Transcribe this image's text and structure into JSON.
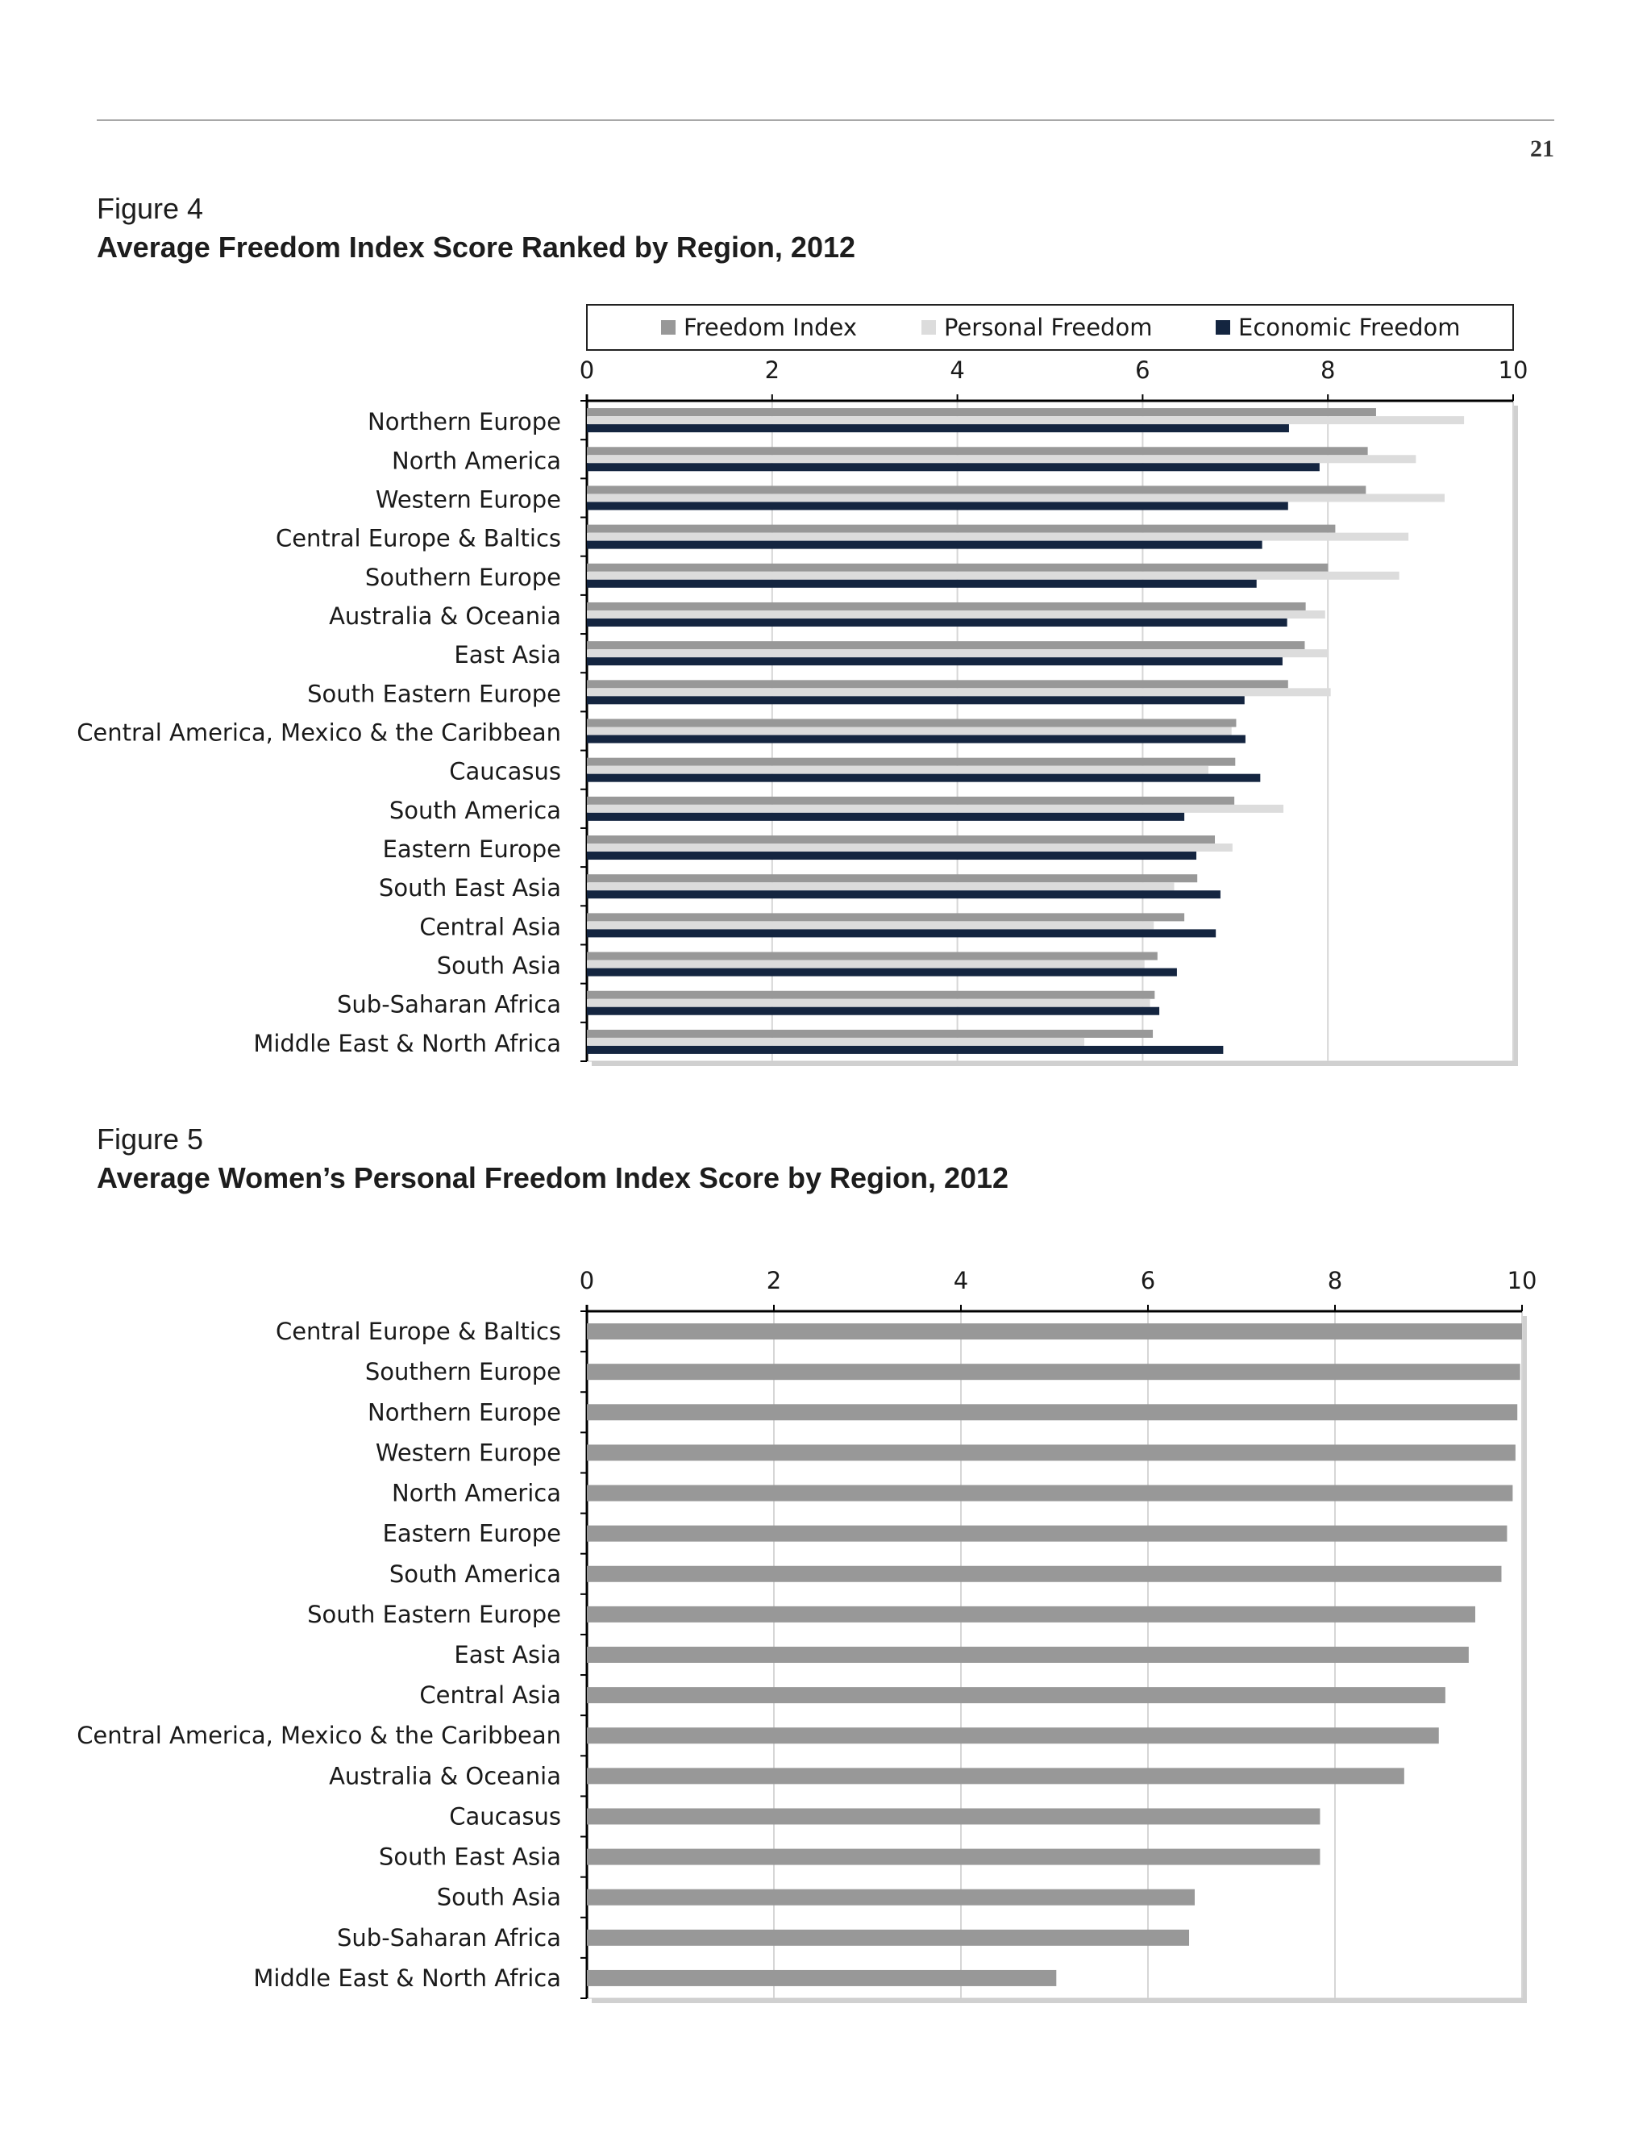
{
  "page": {
    "number": "21"
  },
  "figures": [
    {
      "label": "Figure 4",
      "title": "Average Freedom Index Score Ranked by Region, 2012"
    },
    {
      "label": "Figure 5",
      "title": "Average Women’s Personal Freedom Index Score by Region, 2012"
    }
  ],
  "colors": {
    "freedom_index": "#989898",
    "personal_freedom": "#dcdcdc",
    "economic_freedom": "#142540",
    "grid": "#d6d6d6",
    "axis": "#000000"
  },
  "chart_data": [
    {
      "type": "bar",
      "orientation": "horizontal",
      "title": "Average Freedom Index Score Ranked by Region, 2012",
      "categories": [
        "Northern Europe",
        "North America",
        "Western Europe",
        "Central Europe & Baltics",
        "Southern Europe",
        "Australia & Oceania",
        "East Asia",
        "South Eastern Europe",
        "Central America, Mexico & the Caribbean",
        "Caucasus",
        "South America",
        "Eastern Europe",
        "South East Asia",
        "Central Asia",
        "South Asia",
        "Sub-Saharan Africa",
        "Middle East & North Africa"
      ],
      "series": [
        {
          "name": "Freedom Index",
          "values": [
            8.52,
            8.43,
            8.41,
            8.08,
            8.0,
            7.76,
            7.75,
            7.57,
            7.01,
            7.0,
            6.99,
            6.78,
            6.59,
            6.45,
            6.16,
            6.13,
            6.11
          ]
        },
        {
          "name": "Personal Freedom",
          "values": [
            9.47,
            8.95,
            9.26,
            8.87,
            8.77,
            7.97,
            7.99,
            8.03,
            6.96,
            6.71,
            7.52,
            6.97,
            6.34,
            6.12,
            6.02,
            6.08,
            5.37
          ]
        },
        {
          "name": "Economic Freedom",
          "values": [
            7.58,
            7.91,
            7.57,
            7.29,
            7.23,
            7.56,
            7.51,
            7.1,
            7.11,
            7.27,
            6.45,
            6.58,
            6.84,
            6.79,
            6.37,
            6.18,
            6.87
          ]
        }
      ],
      "xlim": [
        0,
        10
      ],
      "xticks": [
        "0",
        "2",
        "4",
        "6",
        "8",
        "10"
      ],
      "legend": "top",
      "grid": true
    },
    {
      "type": "bar",
      "orientation": "horizontal",
      "title": "Average Women’s Personal Freedom Index Score by Region, 2012",
      "categories": [
        "Central Europe & Baltics",
        "Southern Europe",
        "Northern Europe",
        "Western Europe",
        "North America",
        "Eastern Europe",
        "South America",
        "South Eastern Europe",
        "East Asia",
        "Central Asia",
        "Central America, Mexico & the Caribbean",
        "Australia & Oceania",
        "Caucasus",
        "South East Asia",
        "South Asia",
        "Sub-Saharan Africa",
        "Middle East & North Africa"
      ],
      "values": [
        10.0,
        9.98,
        9.95,
        9.93,
        9.9,
        9.84,
        9.78,
        9.5,
        9.43,
        9.18,
        9.11,
        8.74,
        7.84,
        7.84,
        6.5,
        6.44,
        5.02
      ],
      "xlim": [
        0,
        10
      ],
      "xticks": [
        "0",
        "2",
        "4",
        "6",
        "8",
        "10"
      ],
      "grid": true
    }
  ]
}
